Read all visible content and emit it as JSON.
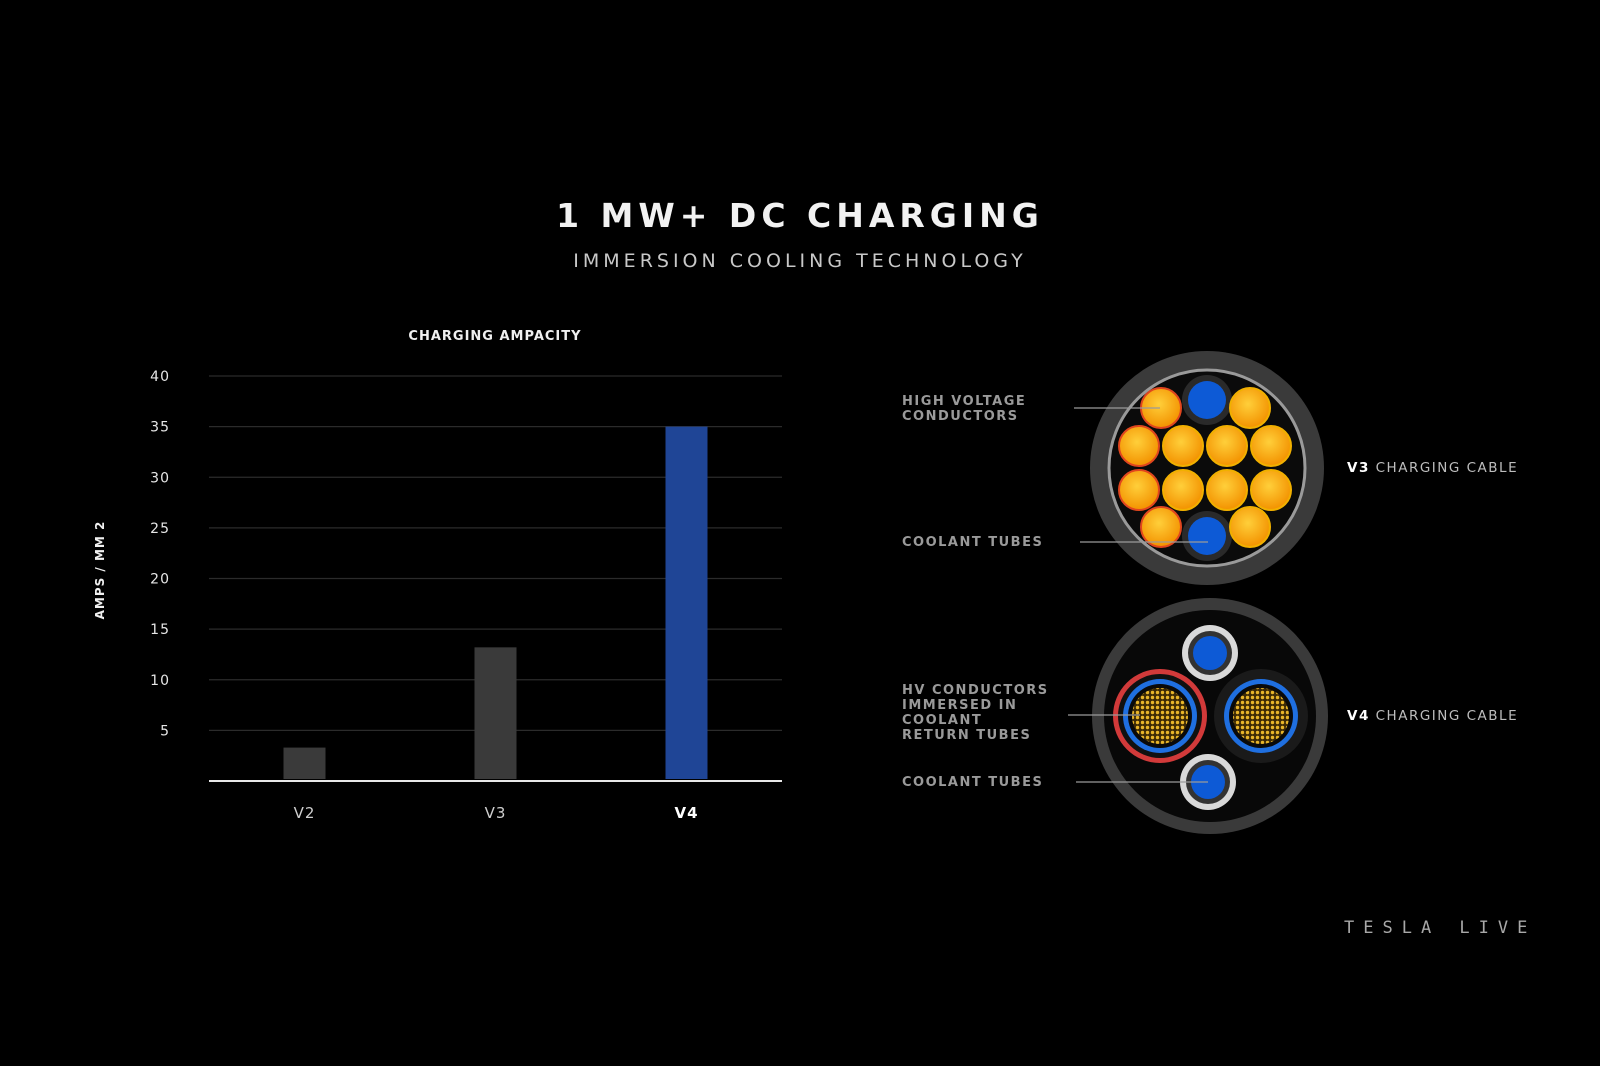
{
  "header": {
    "title": "1 MW+ DC CHARGING",
    "subtitle": "IMMERSION COOLING TECHNOLOGY"
  },
  "chart_data": {
    "type": "bar",
    "title": "CHARGING AMPACITY",
    "ylabel": "AMPS / MM 2",
    "xlabel": "",
    "categories": [
      "V2",
      "V3",
      "V4"
    ],
    "values": [
      3.3,
      13.2,
      35
    ],
    "ylim": [
      0,
      40
    ],
    "yticks": [
      5,
      10,
      15,
      20,
      25,
      30,
      35,
      40
    ],
    "grid": true,
    "bar_colors": [
      "#3a3a3a",
      "#3a3a3a",
      "#1f4596"
    ],
    "highlight_category": "V4"
  },
  "diagram": {
    "v3": {
      "callouts": [
        "HIGH VOLTAGE\nCONDUCTORS",
        "COOLANT TUBES"
      ],
      "label_bold": "V3",
      "label_text": " CHARGING CABLE"
    },
    "v4": {
      "callouts": [
        "HV CONDUCTORS\nIMMERSED IN\nCOOLANT\nRETURN TUBES",
        "COOLANT TUBES"
      ],
      "label_bold": "V4",
      "label_text": " CHARGING CABLE"
    },
    "colors": {
      "conductor": "#f6a400",
      "coolant": "#0d5ad6",
      "jacket": "#3b3b3b",
      "return_ring_red": "#d23a3a"
    }
  },
  "brand": "TESLA LIVE"
}
